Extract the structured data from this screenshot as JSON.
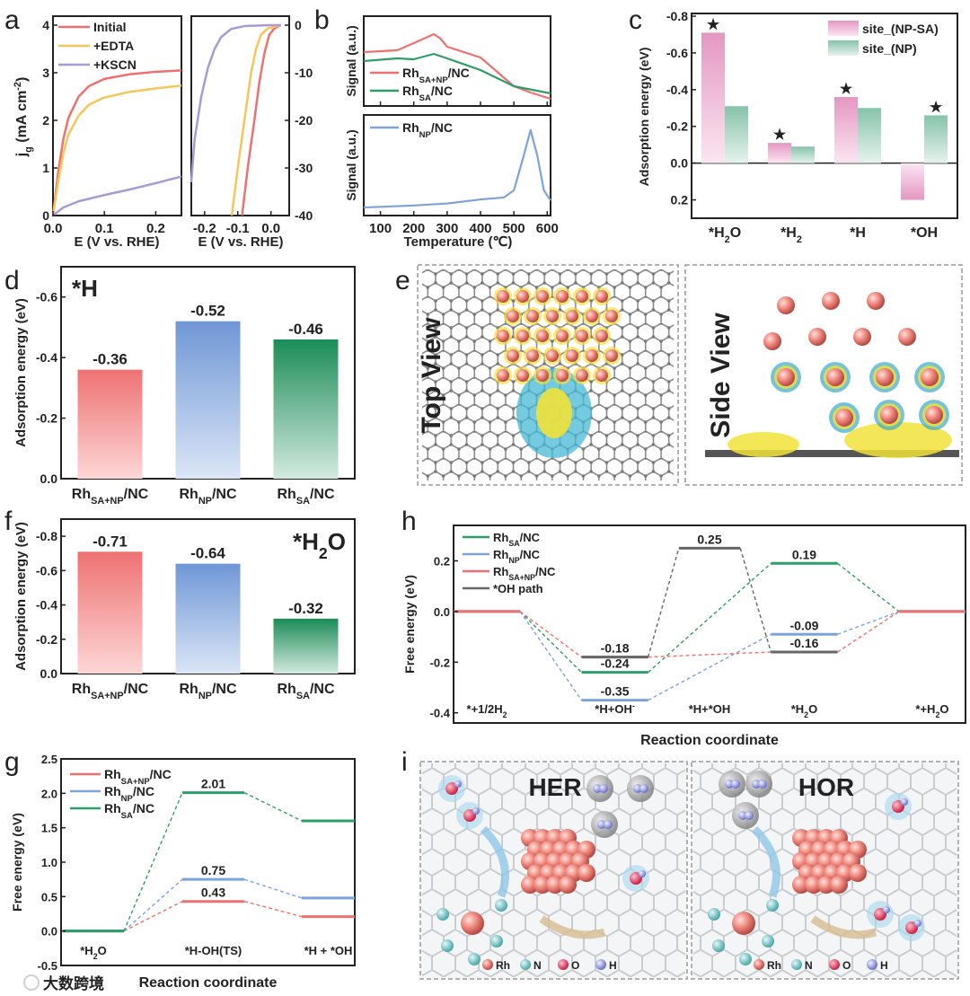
{
  "panel_labels": [
    "a",
    "b",
    "c",
    "d",
    "e",
    "f",
    "g",
    "h",
    "i"
  ],
  "colors": {
    "red": "#ee7070",
    "orange": "#f5c75a",
    "purple": "#a79ad6",
    "green": "#2e9e68",
    "blue": "#7ea3dc",
    "gray": "#666666",
    "pink": "#e49bc3",
    "teal": "#8cc6ad",
    "star": "#ef6f6f"
  },
  "chart_data": [
    {
      "id": "a_hor",
      "type": "line",
      "xlabel": "E (V vs. RHE)",
      "ylabel": "j_{g} (mA cm^{-2})",
      "xlim": [
        0,
        0.25
      ],
      "ylim": [
        0,
        4
      ],
      "xticks": [
        "0.0",
        "0.1",
        "0.2"
      ],
      "xtick_values": [
        0,
        0.1,
        0.2
      ],
      "yticks": [
        "0",
        "1",
        "2",
        "3",
        "4"
      ],
      "ytick_values": [
        0,
        1,
        2,
        3,
        4
      ],
      "legend": "top-left",
      "series": [
        {
          "name": "Initial",
          "color": "red",
          "points": [
            [
              0,
              0
            ],
            [
              0.01,
              0.9
            ],
            [
              0.02,
              1.6
            ],
            [
              0.03,
              2.05
            ],
            [
              0.05,
              2.5
            ],
            [
              0.07,
              2.72
            ],
            [
              0.1,
              2.87
            ],
            [
              0.15,
              2.97
            ],
            [
              0.2,
              3.02
            ],
            [
              0.25,
              3.05
            ]
          ]
        },
        {
          "name": "+EDTA",
          "color": "orange",
          "points": [
            [
              0,
              0
            ],
            [
              0.01,
              0.7
            ],
            [
              0.02,
              1.3
            ],
            [
              0.03,
              1.7
            ],
            [
              0.05,
              2.1
            ],
            [
              0.07,
              2.33
            ],
            [
              0.1,
              2.48
            ],
            [
              0.15,
              2.6
            ],
            [
              0.2,
              2.67
            ],
            [
              0.25,
              2.73
            ]
          ]
        },
        {
          "name": "+KSCN",
          "color": "purple",
          "points": [
            [
              0,
              0
            ],
            [
              0.02,
              0.17
            ],
            [
              0.05,
              0.3
            ],
            [
              0.1,
              0.43
            ],
            [
              0.15,
              0.55
            ],
            [
              0.2,
              0.68
            ],
            [
              0.25,
              0.82
            ]
          ]
        }
      ]
    },
    {
      "id": "a_her",
      "type": "line",
      "xlabel": "E (V vs. RHE)",
      "xlim": [
        -0.24,
        0.055
      ],
      "ylim": [
        -40,
        0
      ],
      "xticks": [
        "-0.2",
        "-0.1",
        "0.0"
      ],
      "xtick_values": [
        -0.2,
        -0.1,
        0
      ],
      "yticks": [
        "0",
        "-10",
        "-20",
        "-30",
        "-40"
      ],
      "ytick_values": [
        0,
        -10,
        -20,
        -30,
        -40
      ],
      "series": [
        {
          "name": "Initial",
          "color": "red",
          "points": [
            [
              -0.087,
              -40
            ],
            [
              -0.07,
              -30
            ],
            [
              -0.05,
              -20
            ],
            [
              -0.035,
              -12
            ],
            [
              -0.02,
              -6
            ],
            [
              -0.005,
              -2
            ],
            [
              0.01,
              -0.7
            ],
            [
              0.03,
              0
            ]
          ]
        },
        {
          "name": "+EDTA",
          "color": "orange",
          "points": [
            [
              -0.118,
              -40
            ],
            [
              -0.1,
              -30
            ],
            [
              -0.08,
              -20
            ],
            [
              -0.06,
              -10
            ],
            [
              -0.045,
              -5
            ],
            [
              -0.03,
              -2
            ],
            [
              -0.01,
              -0.7
            ],
            [
              0.02,
              -0.2
            ],
            [
              0.03,
              0
            ]
          ]
        },
        {
          "name": "+KSCN",
          "color": "purple",
          "points": [
            [
              -0.24,
              -33
            ],
            [
              -0.23,
              -24
            ],
            [
              -0.21,
              -15
            ],
            [
              -0.19,
              -9
            ],
            [
              -0.17,
              -5
            ],
            [
              -0.15,
              -2.5
            ],
            [
              -0.12,
              -0.8
            ],
            [
              -0.08,
              -0.2
            ],
            [
              0,
              0
            ],
            [
              0.03,
              0
            ]
          ]
        }
      ]
    },
    {
      "id": "b",
      "type": "line",
      "xlabel": "Temperature (℃)",
      "ylabel": "Signal (a.u.)",
      "xlim": [
        50,
        610
      ],
      "xticks": [
        "100",
        "200",
        "300",
        "400",
        "500",
        "600"
      ],
      "xtick_values": [
        100,
        200,
        300,
        400,
        500,
        600
      ],
      "top": [
        {
          "name": "Rh_{SA+NP}/NC",
          "color": "red",
          "points": [
            [
              50,
              0.6
            ],
            [
              150,
              0.62
            ],
            [
              200,
              0.7
            ],
            [
              260,
              0.8
            ],
            [
              280,
              0.75
            ],
            [
              300,
              0.66
            ],
            [
              350,
              0.6
            ],
            [
              400,
              0.54
            ],
            [
              450,
              0.38
            ],
            [
              500,
              0.22
            ],
            [
              550,
              0.15
            ],
            [
              610,
              0.08
            ]
          ]
        },
        {
          "name": "Rh_{SA}/NC",
          "color": "green",
          "points": [
            [
              50,
              0.5
            ],
            [
              150,
              0.53
            ],
            [
              200,
              0.52
            ],
            [
              260,
              0.58
            ],
            [
              300,
              0.53
            ],
            [
              400,
              0.4
            ],
            [
              500,
              0.22
            ],
            [
              610,
              0.14
            ]
          ]
        }
      ],
      "bottom": [
        {
          "name": "Rh_{NP}/NC",
          "color": "blue",
          "points": [
            [
              50,
              0.08
            ],
            [
              200,
              0.1
            ],
            [
              300,
              0.12
            ],
            [
              400,
              0.16
            ],
            [
              470,
              0.18
            ],
            [
              500,
              0.25
            ],
            [
              530,
              0.6
            ],
            [
              550,
              0.85
            ],
            [
              570,
              0.6
            ],
            [
              590,
              0.25
            ],
            [
              610,
              0.15
            ]
          ]
        }
      ]
    },
    {
      "id": "c",
      "type": "bar",
      "ylabel": "Adsorption energy (eV)",
      "ylim": [
        -0.8,
        0.3
      ],
      "inverted": true,
      "categories": [
        "*H_{2}O",
        "*H_{2}",
        "*H",
        "*OH"
      ],
      "yticks": [
        "-0.8",
        "-0.6",
        "-0.4",
        "-0.2",
        "0.0",
        "0.2"
      ],
      "ytick_values": [
        -0.8,
        -0.6,
        -0.4,
        -0.2,
        0,
        0.2
      ],
      "legend": "top-right",
      "series": [
        {
          "name": "site_(NP-SA)",
          "color": "pink",
          "values": [
            -0.71,
            -0.11,
            -0.36,
            0.2
          ]
        },
        {
          "name": "site_(NP)",
          "color": "teal",
          "values": [
            -0.31,
            -0.09,
            -0.3,
            -0.26
          ]
        }
      ],
      "stars": [
        [
          0,
          0
        ],
        [
          1,
          0
        ],
        [
          2,
          0
        ],
        [
          3,
          1
        ]
      ]
    },
    {
      "id": "d",
      "type": "bar",
      "ylabel": "Adsorption energy (eV)",
      "annotation": "*H",
      "ylim": [
        0,
        -0.7
      ],
      "categories": [
        "Rh_{SA+NP}/NC",
        "Rh_{NP}/NC",
        "Rh_{SA}/NC"
      ],
      "values": [
        -0.36,
        -0.52,
        -0.46
      ],
      "labels": [
        "-0.36",
        "-0.52",
        "-0.46"
      ],
      "colors": [
        "red",
        "blue",
        "green"
      ],
      "yticks": [
        "0.0",
        "-0.2",
        "-0.4",
        "-0.6"
      ],
      "ytick_values": [
        0,
        -0.2,
        -0.4,
        -0.6
      ]
    },
    {
      "id": "f",
      "type": "bar",
      "ylabel": "Adsorption energy (eV)",
      "annotation": "*H_{2}O",
      "ylim": [
        0,
        -0.9
      ],
      "categories": [
        "Rh_{SA+NP}/NC",
        "Rh_{NP}/NC",
        "Rh_{SA}/NC"
      ],
      "values": [
        -0.71,
        -0.64,
        -0.32
      ],
      "labels": [
        "-0.71",
        "-0.64",
        "-0.32"
      ],
      "colors": [
        "red",
        "blue",
        "green"
      ],
      "yticks": [
        "0.0",
        "-0.2",
        "-0.4",
        "-0.6",
        "-0.8"
      ],
      "ytick_values": [
        0,
        -0.2,
        -0.4,
        -0.6,
        -0.8
      ]
    },
    {
      "id": "g",
      "type": "line",
      "xlabel": "Reaction coordinate",
      "ylabel": "Free energy (eV)",
      "ylim": [
        -0.5,
        2.5
      ],
      "categories": [
        "*H_{2}O",
        "*H-OH(TS)",
        "*H + *OH"
      ],
      "yticks": [
        "-0.5",
        "0.0",
        "0.5",
        "1.0",
        "1.5",
        "2.0",
        "2.5"
      ],
      "ytick_values": [
        -0.5,
        0,
        0.5,
        1,
        1.5,
        2,
        2.5
      ],
      "legend": "top-left",
      "series": [
        {
          "name": "Rh_{SA+NP}/NC",
          "color": "red",
          "values": [
            0,
            0.43,
            0.21
          ],
          "labels": [
            null,
            "0.43",
            null
          ]
        },
        {
          "name": "Rh_{NP}/NC",
          "color": "blue",
          "values": [
            0,
            0.75,
            0.48
          ],
          "labels": [
            null,
            "0.75",
            null
          ]
        },
        {
          "name": "Rh_{SA}/NC",
          "color": "green",
          "values": [
            0,
            2.01,
            1.6
          ],
          "labels": [
            null,
            "2.01",
            null
          ]
        }
      ]
    },
    {
      "id": "h",
      "type": "line",
      "xlabel": "Reaction coordinate",
      "ylabel": "Free energy (eV)",
      "ylim": [
        -0.44,
        0.34
      ],
      "categories": [
        "*+1/2H_{2}",
        "*H+OH^{-}",
        "*H+*OH",
        "*H_{2}O",
        "*+H_{2}O"
      ],
      "yticks": [
        "-0.4",
        "-0.2",
        "0.0",
        "0.2"
      ],
      "ytick_values": [
        -0.4,
        -0.2,
        0,
        0.2
      ],
      "legend": "top-left",
      "series": [
        {
          "name": "Rh_{SA}/NC",
          "color": "green",
          "values": [
            0,
            -0.24,
            null,
            0.19,
            0
          ],
          "labels": [
            null,
            "-0.24",
            null,
            "0.19",
            null
          ]
        },
        {
          "name": "Rh_{NP}/NC",
          "color": "blue",
          "values": [
            0,
            -0.35,
            null,
            -0.09,
            0
          ],
          "labels": [
            null,
            "-0.35",
            null,
            "-0.09",
            null
          ]
        },
        {
          "name": "Rh_{SA+NP}/NC",
          "color": "red",
          "values": [
            0,
            -0.18,
            null,
            -0.16,
            0
          ],
          "labels": [
            null,
            "-0.18",
            null,
            "-0.16",
            null
          ]
        },
        {
          "name": "*OH path",
          "color": "gray",
          "values": [
            null,
            -0.18,
            0.25,
            -0.16,
            null
          ],
          "labels": [
            null,
            null,
            "0.25",
            null,
            null
          ]
        }
      ]
    }
  ],
  "panel_e": {
    "top_view": "Top View",
    "side_view": "Side View"
  },
  "panel_i": {
    "her": "HER",
    "hor": "HOR",
    "legend": [
      "Rh",
      "N",
      "O",
      "H"
    ]
  },
  "watermark": "大数跨境"
}
